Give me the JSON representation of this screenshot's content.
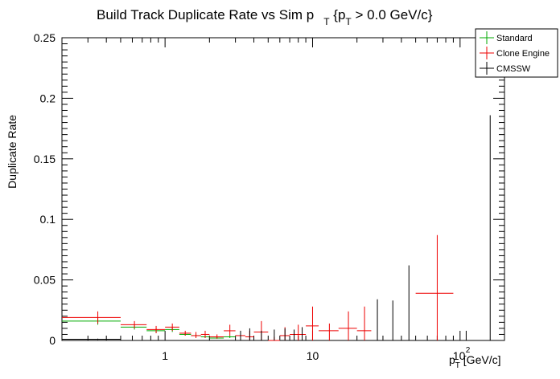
{
  "chart_data": {
    "type": "scatter",
    "title_main": "Build Track Duplicate Rate vs Sim p",
    "title_sub1": "T",
    "title_mid": " {p",
    "title_sub2": "T",
    "title_end": " > 0.0 GeV/c}",
    "ylabel": "Duplicate Rate",
    "xlabel_main": "p",
    "xlabel_sub": "T",
    "xlabel_unit": " [GeV/c]",
    "xscale": "log",
    "xlim": [
      0.2,
      200
    ],
    "ylim": [
      0,
      0.25
    ],
    "x_ticks": [
      {
        "value": 1,
        "label": "1"
      },
      {
        "value": 10,
        "label": "10"
      },
      {
        "value": 100,
        "label": "10",
        "exp": "2"
      }
    ],
    "y_ticks": [
      {
        "value": 0,
        "label": "0"
      },
      {
        "value": 0.05,
        "label": "0.05"
      },
      {
        "value": 0.1,
        "label": "0.1"
      },
      {
        "value": 0.15,
        "label": "0.15"
      },
      {
        "value": 0.2,
        "label": "0.2"
      },
      {
        "value": 0.25,
        "label": "0.25"
      }
    ],
    "legend_position": "top-right",
    "series": [
      {
        "name": "Standard",
        "color": "#00aa00",
        "points": [
          {
            "x": 0.35,
            "xlo": 0.2,
            "xhi": 0.5,
            "y": 0.016,
            "ylo": 0.013,
            "yhi": 0.019
          },
          {
            "x": 0.62,
            "xlo": 0.5,
            "xhi": 0.75,
            "y": 0.011,
            "ylo": 0.009,
            "yhi": 0.013
          },
          {
            "x": 0.87,
            "xlo": 0.75,
            "xhi": 1.0,
            "y": 0.008,
            "ylo": 0.006,
            "yhi": 0.01
          },
          {
            "x": 1.12,
            "xlo": 1.0,
            "xhi": 1.25,
            "y": 0.009,
            "ylo": 0.007,
            "yhi": 0.011
          },
          {
            "x": 1.37,
            "xlo": 1.25,
            "xhi": 1.5,
            "y": 0.005,
            "ylo": 0.004,
            "yhi": 0.006
          },
          {
            "x": 1.62,
            "xlo": 1.5,
            "xhi": 1.75,
            "y": 0.004,
            "ylo": 0.003,
            "yhi": 0.005
          },
          {
            "x": 1.87,
            "xlo": 1.75,
            "xhi": 2.0,
            "y": 0.003,
            "ylo": 0.002,
            "yhi": 0.004
          },
          {
            "x": 2.25,
            "xlo": 2.0,
            "xhi": 2.5,
            "y": 0.002,
            "ylo": 0.0015,
            "yhi": 0.003
          },
          {
            "x": 2.75,
            "xlo": 2.5,
            "xhi": 3.0,
            "y": 0.003,
            "ylo": 0.002,
            "yhi": 0.004
          }
        ]
      },
      {
        "name": "Clone Engine",
        "color": "#ee0000",
        "points": [
          {
            "x": 0.35,
            "xlo": 0.2,
            "xhi": 0.5,
            "y": 0.019,
            "ylo": 0.014,
            "yhi": 0.024
          },
          {
            "x": 0.62,
            "xlo": 0.5,
            "xhi": 0.75,
            "y": 0.013,
            "ylo": 0.01,
            "yhi": 0.016
          },
          {
            "x": 0.87,
            "xlo": 0.75,
            "xhi": 1.0,
            "y": 0.009,
            "ylo": 0.006,
            "yhi": 0.012
          },
          {
            "x": 1.12,
            "xlo": 1.0,
            "xhi": 1.25,
            "y": 0.011,
            "ylo": 0.008,
            "yhi": 0.014
          },
          {
            "x": 1.37,
            "xlo": 1.25,
            "xhi": 1.5,
            "y": 0.006,
            "ylo": 0.004,
            "yhi": 0.008
          },
          {
            "x": 1.62,
            "xlo": 1.5,
            "xhi": 1.75,
            "y": 0.004,
            "ylo": 0.002,
            "yhi": 0.007
          },
          {
            "x": 1.87,
            "xlo": 1.75,
            "xhi": 2.0,
            "y": 0.005,
            "ylo": 0.002,
            "yhi": 0.008
          },
          {
            "x": 2.25,
            "xlo": 2.0,
            "xhi": 2.5,
            "y": 0.003,
            "ylo": 0.0015,
            "yhi": 0.005
          },
          {
            "x": 2.75,
            "xlo": 2.5,
            "xhi": 3.0,
            "y": 0.008,
            "ylo": 0.004,
            "yhi": 0.013
          },
          {
            "x": 3.25,
            "xlo": 3.0,
            "xhi": 3.5,
            "y": 0.004,
            "ylo": 0.001,
            "yhi": 0.008
          },
          {
            "x": 3.75,
            "xlo": 3.5,
            "xhi": 4.0,
            "y": 0.003,
            "ylo": 0.0,
            "yhi": 0.008
          },
          {
            "x": 4.5,
            "xlo": 4.0,
            "xhi": 5.0,
            "y": 0.007,
            "ylo": 0.0,
            "yhi": 0.016
          },
          {
            "x": 5.5,
            "xlo": 5.0,
            "xhi": 6.0,
            "y": 0.0,
            "ylo": 0.0,
            "yhi": 0.003
          },
          {
            "x": 6.5,
            "xlo": 6.0,
            "xhi": 7.0,
            "y": 0.004,
            "ylo": 0.0,
            "yhi": 0.011
          },
          {
            "x": 8.0,
            "xlo": 7.0,
            "xhi": 9.0,
            "y": 0.005,
            "ylo": 0.0,
            "yhi": 0.013
          },
          {
            "x": 10.0,
            "xlo": 9.0,
            "xhi": 11.0,
            "y": 0.012,
            "ylo": 0.0,
            "yhi": 0.028
          },
          {
            "x": 13.0,
            "xlo": 11.0,
            "xhi": 15.0,
            "y": 0.008,
            "ylo": 0.0,
            "yhi": 0.014
          },
          {
            "x": 17.5,
            "xlo": 15.0,
            "xhi": 20.0,
            "y": 0.01,
            "ylo": 0.0,
            "yhi": 0.024
          },
          {
            "x": 22.5,
            "xlo": 20.0,
            "xhi": 25.0,
            "y": 0.008,
            "ylo": 0.0,
            "yhi": 0.028
          },
          {
            "x": 70.0,
            "xlo": 50.0,
            "xhi": 90.0,
            "y": 0.039,
            "ylo": 0.0,
            "yhi": 0.087
          }
        ]
      },
      {
        "name": "CMSSW",
        "color": "#000000",
        "points": [
          {
            "x": 0.35,
            "xlo": 0.2,
            "xhi": 0.5,
            "y": 0.001,
            "ylo": 0.0005,
            "yhi": 0.0015
          },
          {
            "x": 0.62,
            "xlo": 0.5,
            "xhi": 0.75,
            "y": 0.0,
            "ylo": 0.0,
            "yhi": 0.0
          },
          {
            "x": 3.25,
            "xlo": 3.25,
            "xhi": 3.25,
            "y": 0.0,
            "ylo": 0.0,
            "yhi": 0.008
          },
          {
            "x": 3.75,
            "xlo": 3.75,
            "xhi": 3.75,
            "y": 0.0,
            "ylo": 0.0,
            "yhi": 0.01
          },
          {
            "x": 4.5,
            "xlo": 4.5,
            "xhi": 4.5,
            "y": 0.0,
            "ylo": 0.0,
            "yhi": 0.008
          },
          {
            "x": 5.5,
            "xlo": 5.5,
            "xhi": 5.5,
            "y": 0.0,
            "ylo": 0.0,
            "yhi": 0.009
          },
          {
            "x": 6.5,
            "xlo": 6.5,
            "xhi": 6.5,
            "y": 0.0,
            "ylo": 0.0,
            "yhi": 0.01
          },
          {
            "x": 7.5,
            "xlo": 7.5,
            "xhi": 7.5,
            "y": 0.0,
            "ylo": 0.0,
            "yhi": 0.009
          },
          {
            "x": 8.5,
            "xlo": 8.5,
            "xhi": 8.5,
            "y": 0.0,
            "ylo": 0.0,
            "yhi": 0.011
          },
          {
            "x": 27.5,
            "xlo": 27.5,
            "xhi": 27.5,
            "y": 0.0,
            "ylo": 0.0,
            "yhi": 0.034
          },
          {
            "x": 35.0,
            "xlo": 35.0,
            "xhi": 35.0,
            "y": 0.0,
            "ylo": 0.0,
            "yhi": 0.033
          },
          {
            "x": 45.0,
            "xlo": 45.0,
            "xhi": 45.0,
            "y": 0.0,
            "ylo": 0.0,
            "yhi": 0.062
          },
          {
            "x": 110.0,
            "xlo": 110.0,
            "xhi": 110.0,
            "y": 0.0,
            "ylo": 0.0,
            "yhi": 0.008
          },
          {
            "x": 160.0,
            "xlo": 160.0,
            "xhi": 160.0,
            "y": 0.0,
            "ylo": 0.0,
            "yhi": 0.186
          }
        ]
      }
    ]
  }
}
